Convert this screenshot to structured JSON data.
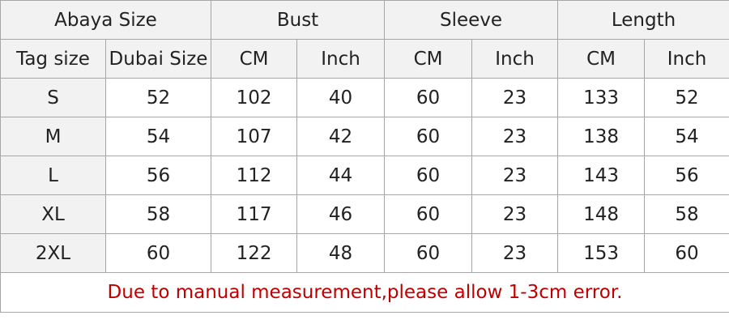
{
  "header_groups": [
    "Abaya Size",
    "Bust",
    "Sleeve",
    "Length"
  ],
  "sub_headers": [
    "Tag size",
    "Dubai Size",
    "CM",
    "Inch",
    "CM",
    "Inch",
    "CM",
    "Inch"
  ],
  "rows": [
    [
      "S",
      "52",
      "102",
      "40",
      "60",
      "23",
      "133",
      "52"
    ],
    [
      "M",
      "54",
      "107",
      "42",
      "60",
      "23",
      "138",
      "54"
    ],
    [
      "L",
      "56",
      "112",
      "44",
      "60",
      "23",
      "143",
      "56"
    ],
    [
      "XL",
      "58",
      "117",
      "46",
      "60",
      "23",
      "148",
      "58"
    ],
    [
      "2XL",
      "60",
      "122",
      "48",
      "60",
      "23",
      "153",
      "60"
    ]
  ],
  "note": "Due to manual measurement,please allow 1-3cm error.",
  "colors": {
    "header_bg": "#f2f2f2",
    "note_text": "#c00000",
    "border": "#a6a6a6"
  }
}
